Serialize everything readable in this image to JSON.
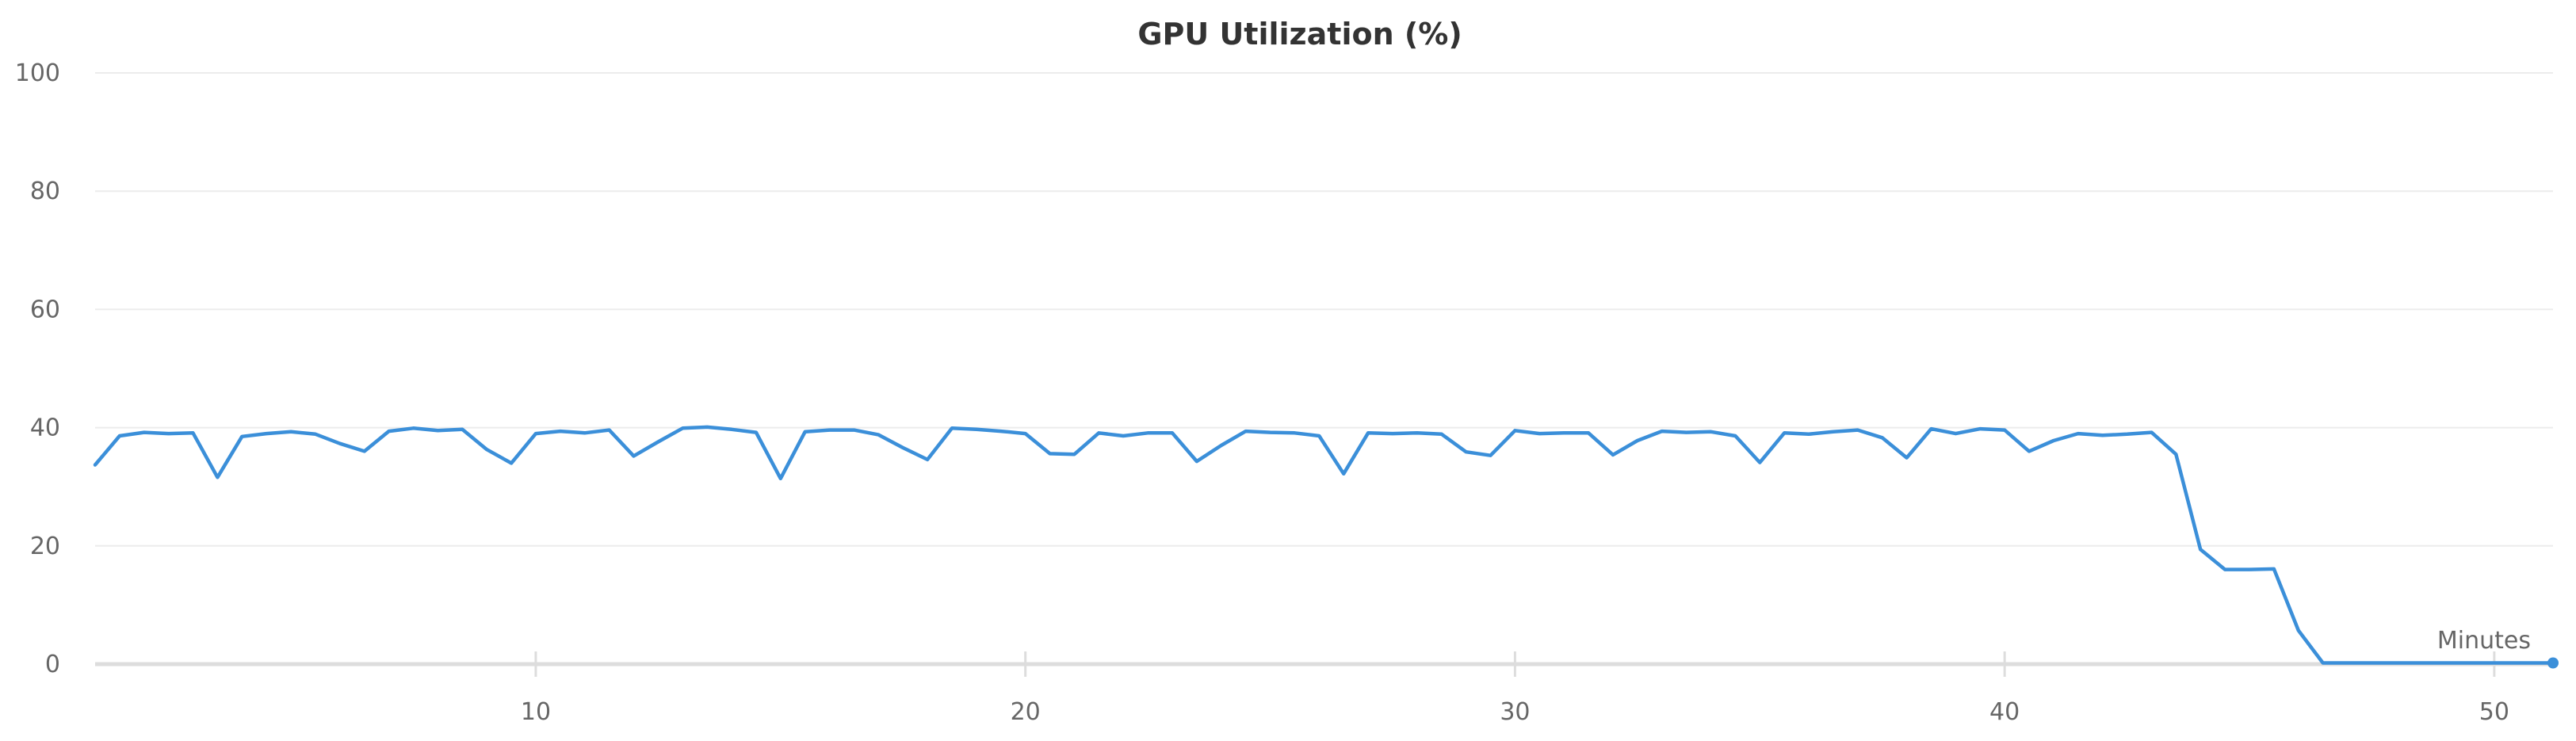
{
  "chart_data": {
    "type": "line",
    "title": "GPU Utilization (%)",
    "xlabel": "Minutes",
    "ylabel": "",
    "xlim": [
      1.0,
      51.2
    ],
    "ylim": [
      0,
      100
    ],
    "x_ticks": [
      10,
      20,
      30,
      40,
      50
    ],
    "y_ticks": [
      0,
      20,
      40,
      60,
      80,
      100
    ],
    "grid": true,
    "legend": "none",
    "colors": {
      "line": "#3b8fd9",
      "grid": "#ececec",
      "tick": "#dddddd",
      "axis": "#dddddd"
    },
    "series": [
      {
        "x": [
          1.0,
          1.5,
          2.0,
          2.5,
          3.0,
          3.5,
          4.0,
          4.5,
          5.0,
          5.5,
          6.0,
          6.5,
          7.0,
          7.5,
          8.0,
          8.5,
          9.0,
          9.5,
          10.0,
          10.5,
          11.0,
          11.5,
          12.0,
          12.5,
          13.0,
          13.5,
          14.0,
          14.5,
          15.0,
          15.5,
          16.0,
          16.5,
          17.0,
          17.5,
          18.0,
          18.5,
          19.0,
          19.5,
          20.0,
          20.5,
          21.0,
          21.5,
          22.0,
          22.5,
          23.0,
          23.5,
          24.0,
          24.5,
          25.0,
          25.5,
          26.0,
          26.5,
          27.0,
          27.5,
          28.0,
          28.5,
          29.0,
          29.5,
          30.0,
          30.5,
          31.0,
          31.5,
          32.0,
          32.5,
          33.0,
          33.5,
          34.0,
          34.5,
          35.0,
          35.5,
          36.0,
          36.5,
          37.0,
          37.5,
          38.0,
          38.5,
          39.0,
          39.5,
          40.0,
          40.5,
          41.0,
          41.5,
          42.0,
          42.5,
          43.0,
          43.5,
          44.0,
          44.5,
          45.0,
          45.5,
          46.0,
          46.5,
          47.0,
          47.5,
          48.0,
          48.5,
          49.0,
          49.5,
          50.0,
          50.5,
          51.2
        ],
        "y": [
          33.7,
          38.6,
          39.2,
          39.0,
          39.1,
          31.6,
          38.5,
          39.0,
          39.3,
          38.9,
          37.3,
          36.0,
          39.4,
          39.9,
          39.5,
          39.7,
          36.3,
          34.0,
          39.0,
          39.4,
          39.1,
          39.6,
          35.2,
          37.6,
          39.9,
          40.1,
          39.7,
          39.2,
          31.4,
          39.3,
          39.6,
          39.6,
          38.8,
          36.6,
          34.6,
          39.9,
          39.7,
          39.4,
          39.0,
          35.6,
          35.5,
          39.1,
          38.6,
          39.1,
          39.1,
          34.3,
          37.0,
          39.4,
          39.2,
          39.1,
          38.6,
          32.2,
          39.1,
          39.0,
          39.1,
          38.9,
          35.9,
          35.3,
          39.5,
          39.0,
          39.1,
          39.1,
          35.4,
          37.8,
          39.4,
          39.2,
          39.3,
          38.6,
          34.1,
          39.1,
          38.9,
          39.3,
          39.6,
          38.3,
          34.9,
          39.8,
          39.0,
          39.8,
          39.6,
          36.0,
          37.8,
          39.0,
          38.7,
          38.9,
          39.2,
          35.5,
          19.4,
          16.0,
          16.0,
          16.1,
          5.7,
          0.2,
          0.2,
          0.2,
          0.2,
          0.2,
          0.2,
          0.2,
          0.2,
          0.2,
          0.2
        ]
      }
    ]
  }
}
